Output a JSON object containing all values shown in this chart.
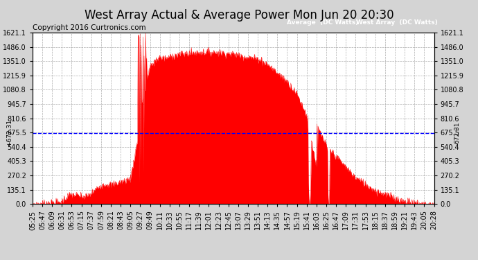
{
  "title": "West Array Actual & Average Power Mon Jun 20 20:30",
  "copyright": "Copyright 2016 Curtronics.com",
  "legend_avg": "Average  (DC Watts)",
  "legend_west": "West Array  (DC Watts)",
  "avg_value": 672.31,
  "y_max": 1621.1,
  "y_min": 0.0,
  "y_ticks": [
    0.0,
    135.1,
    270.2,
    405.3,
    540.4,
    675.5,
    810.6,
    945.7,
    1080.8,
    1215.9,
    1351.0,
    1486.0,
    1621.1
  ],
  "x_labels": [
    "05:25",
    "05:47",
    "06:09",
    "06:31",
    "06:53",
    "07:15",
    "07:37",
    "07:59",
    "08:21",
    "08:43",
    "09:05",
    "09:27",
    "09:49",
    "10:11",
    "10:33",
    "10:55",
    "11:17",
    "11:39",
    "12:01",
    "12:23",
    "12:45",
    "13:07",
    "13:29",
    "13:51",
    "14:13",
    "14:35",
    "14:57",
    "15:19",
    "15:41",
    "16:03",
    "16:25",
    "16:47",
    "17:09",
    "17:31",
    "17:53",
    "18:15",
    "18:37",
    "18:59",
    "19:21",
    "19:43",
    "20:05",
    "20:28"
  ],
  "bg_color": "#d4d4d4",
  "plot_bg": "#ffffff",
  "fill_color": "#ff0000",
  "avg_line_color": "#0000ff",
  "grid_color": "#999999",
  "title_color": "#000000",
  "legend_bg_avg": "#0000bb",
  "legend_bg_west": "#cc0000",
  "title_fontsize": 12,
  "tick_fontsize": 7,
  "copyright_fontsize": 7.5
}
